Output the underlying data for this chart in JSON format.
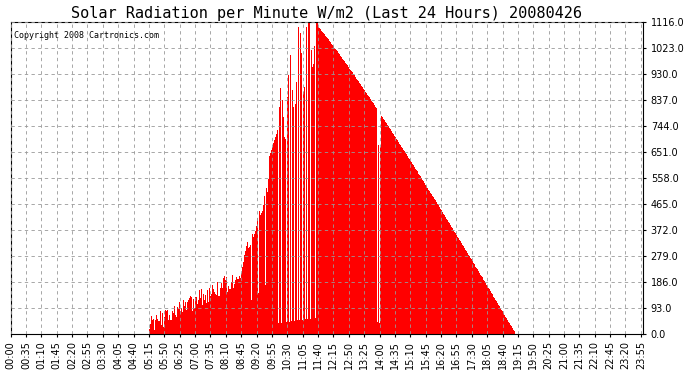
{
  "title": "Solar Radiation per Minute W/m2 (Last 24 Hours) 20080426",
  "copyright": "Copyright 2008 Cartronics.com",
  "bar_color": "#FF0000",
  "background_color": "#FFFFFF",
  "grid_color": "#999999",
  "ylim": [
    0.0,
    1116.0
  ],
  "yticks": [
    0.0,
    93.0,
    186.0,
    279.0,
    372.0,
    465.0,
    558.0,
    651.0,
    744.0,
    837.0,
    930.0,
    1023.0,
    1116.0
  ],
  "title_fontsize": 11,
  "tick_fontsize": 7,
  "n_minutes": 1440,
  "tick_step": 35,
  "peak_value": 1116.0,
  "sunrise_minute": 315,
  "sunset_minute": 1150,
  "peak_minute": 690
}
